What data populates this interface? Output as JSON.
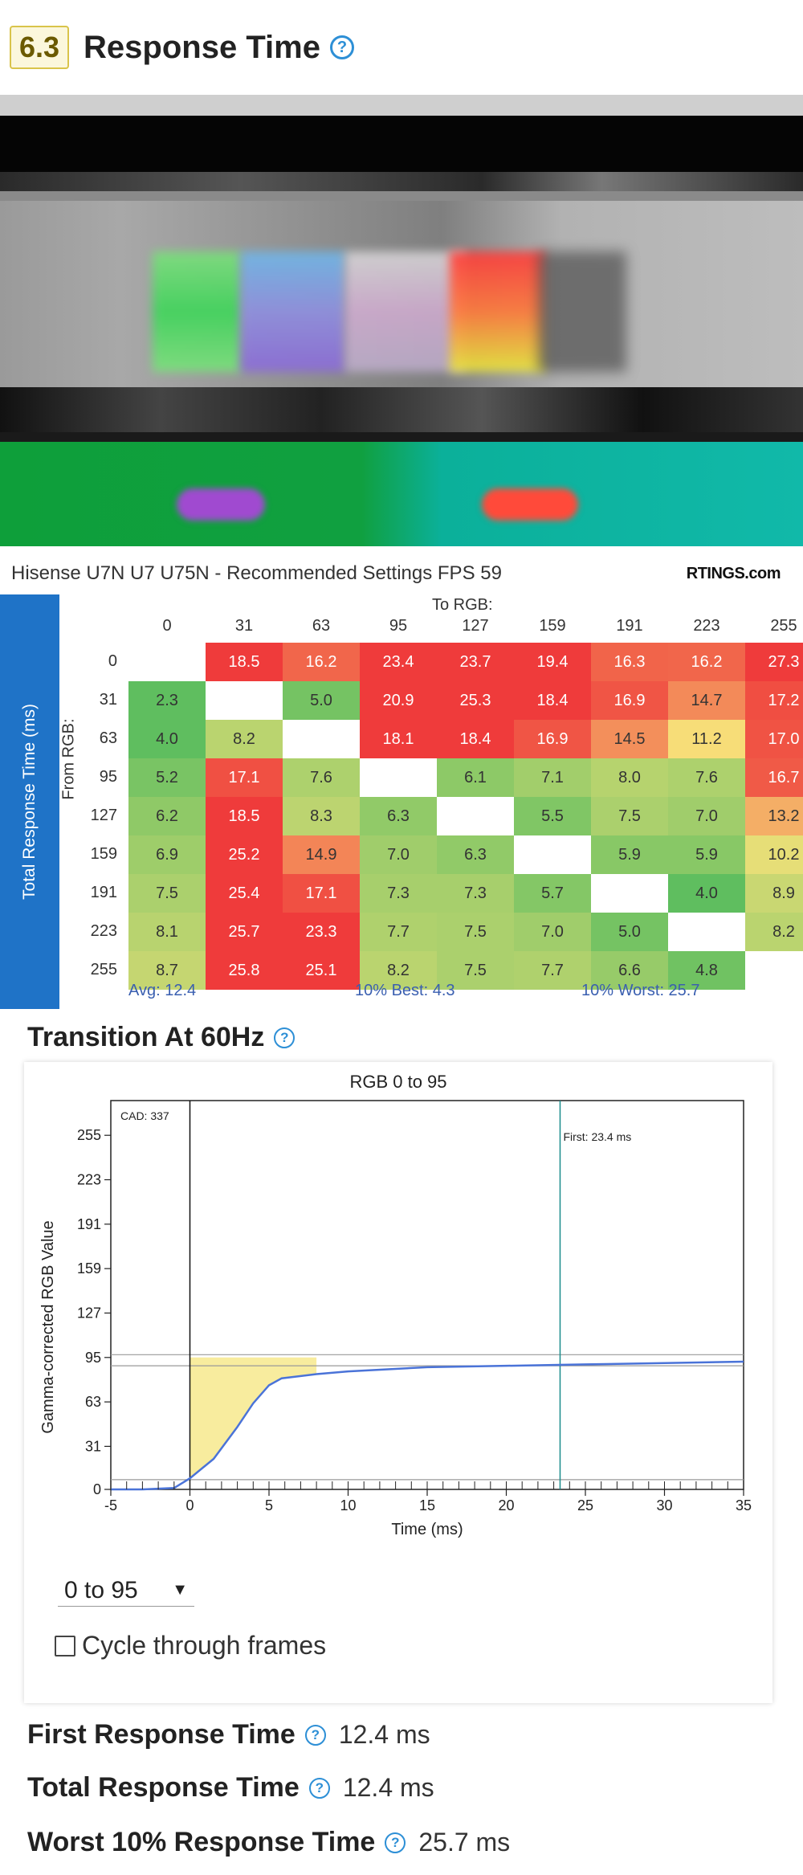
{
  "header": {
    "score": "6.3",
    "title": "Response Time"
  },
  "heatmap": {
    "title": "Hisense U7N U7 U75N - Recommended Settings FPS 59",
    "logo": "RTINGS.com",
    "side_label": "Total Response Time (ms)",
    "to_label": "To RGB:",
    "from_label": "From RGB:",
    "levels": [
      "0",
      "31",
      "63",
      "95",
      "127",
      "159",
      "191",
      "223",
      "255"
    ],
    "rows": [
      [
        null,
        "18.5",
        "16.2",
        "23.4",
        "23.7",
        "19.4",
        "16.3",
        "16.2",
        "27.3"
      ],
      [
        "2.3",
        null,
        "5.0",
        "20.9",
        "25.3",
        "18.4",
        "16.9",
        "14.7",
        "17.2"
      ],
      [
        "4.0",
        "8.2",
        null,
        "18.1",
        "18.4",
        "16.9",
        "14.5",
        "11.2",
        "17.0"
      ],
      [
        "5.2",
        "17.1",
        "7.6",
        null,
        "6.1",
        "7.1",
        "8.0",
        "7.6",
        "16.7"
      ],
      [
        "6.2",
        "18.5",
        "8.3",
        "6.3",
        null,
        "5.5",
        "7.5",
        "7.0",
        "13.2"
      ],
      [
        "6.9",
        "25.2",
        "14.9",
        "7.0",
        "6.3",
        null,
        "5.9",
        "5.9",
        "10.2"
      ],
      [
        "7.5",
        "25.4",
        "17.1",
        "7.3",
        "7.3",
        "5.7",
        null,
        "4.0",
        "8.9"
      ],
      [
        "8.1",
        "25.7",
        "23.3",
        "7.7",
        "7.5",
        "7.0",
        "5.0",
        null,
        "8.2"
      ],
      [
        "8.7",
        "25.8",
        "25.1",
        "8.2",
        "7.5",
        "7.7",
        "6.6",
        "4.8",
        null
      ]
    ],
    "avg": "Avg: 12.4",
    "best": "10% Best: 4.3",
    "worst": "10% Worst: 25.7",
    "colors": {
      "red": "#ef3b3b",
      "green": "#5cbf5c",
      "yellow": "#f7e27a"
    }
  },
  "transition": {
    "heading": "Transition At 60Hz",
    "chart_data": {
      "type": "line",
      "title": "RGB 0 to 95",
      "xlabel": "Time (ms)",
      "ylabel": "Gamma-corrected RGB Value",
      "xlim": [
        -5,
        35
      ],
      "ylim": [
        0,
        280
      ],
      "xticks": [
        -5,
        0,
        5,
        10,
        15,
        20,
        25,
        30,
        35
      ],
      "yticks": [
        0,
        31,
        63,
        95,
        127,
        159,
        191,
        223,
        255
      ],
      "series": [
        {
          "x": [
            -5,
            -3,
            -1,
            0,
            1.5,
            3,
            4,
            5,
            5.8,
            8,
            10,
            15,
            20,
            25,
            30,
            35
          ],
          "y": [
            0,
            0,
            1,
            8,
            22,
            45,
            62,
            75,
            80,
            83,
            85,
            88,
            89,
            90,
            91,
            92
          ]
        }
      ],
      "cad_label": "CAD: 337",
      "first_label": "First: 23.4 ms",
      "first_x": 23.4,
      "band_low": 7,
      "band_high": 97,
      "color": "#4a73d8"
    },
    "select_value": "0 to 95",
    "checkbox_label": "Cycle through frames"
  },
  "results": [
    {
      "label": "First Response Time",
      "value": "12.4 ms"
    },
    {
      "label": "Total Response Time",
      "value": "12.4 ms"
    },
    {
      "label": "Worst 10% Response Time",
      "value": "25.7 ms"
    }
  ]
}
